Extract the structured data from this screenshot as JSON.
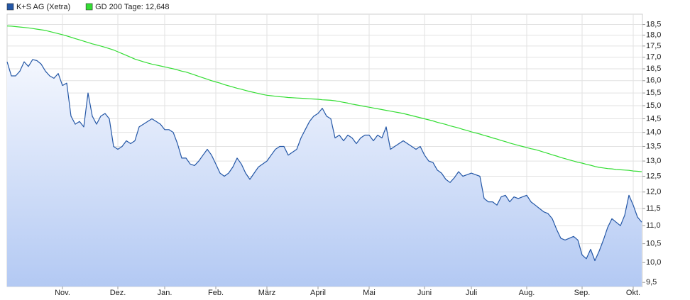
{
  "chart_data": {
    "type": "line",
    "yscale": "log",
    "grid": true,
    "ylim": [
      9.4,
      19.0
    ],
    "yticks": [
      {
        "value": 9.5,
        "label": "9,5"
      },
      {
        "value": 10.0,
        "label": "10,0"
      },
      {
        "value": 10.5,
        "label": "10,5"
      },
      {
        "value": 11.0,
        "label": "11,0"
      },
      {
        "value": 11.5,
        "label": "11,5"
      },
      {
        "value": 12.0,
        "label": "12,0"
      },
      {
        "value": 12.5,
        "label": "12,5"
      },
      {
        "value": 13.0,
        "label": "13,0"
      },
      {
        "value": 13.5,
        "label": "13,5"
      },
      {
        "value": 14.0,
        "label": "14,0"
      },
      {
        "value": 14.5,
        "label": "14,5"
      },
      {
        "value": 15.0,
        "label": "15,0"
      },
      {
        "value": 15.5,
        "label": "15,5"
      },
      {
        "value": 16.0,
        "label": "16,0"
      },
      {
        "value": 16.5,
        "label": "16,5"
      },
      {
        "value": 17.0,
        "label": "17,0"
      },
      {
        "value": 17.5,
        "label": "17,5"
      },
      {
        "value": 18.0,
        "label": "18,0"
      },
      {
        "value": 18.5,
        "label": "18,5"
      }
    ],
    "categories": [
      null,
      null,
      null,
      null,
      null,
      null,
      null,
      null,
      null,
      null,
      null,
      null,
      null,
      "Nov.",
      null,
      null,
      null,
      null,
      null,
      null,
      null,
      null,
      null,
      null,
      null,
      null,
      "Dez.",
      null,
      null,
      null,
      null,
      null,
      null,
      null,
      null,
      null,
      null,
      "Jan.",
      null,
      null,
      null,
      null,
      null,
      null,
      null,
      null,
      null,
      null,
      null,
      "Feb.",
      null,
      null,
      null,
      null,
      null,
      null,
      null,
      null,
      null,
      null,
      null,
      "März",
      null,
      null,
      null,
      null,
      null,
      null,
      null,
      null,
      null,
      null,
      null,
      "April",
      null,
      null,
      null,
      null,
      null,
      null,
      null,
      null,
      null,
      null,
      null,
      "Mai",
      null,
      null,
      null,
      null,
      null,
      null,
      null,
      null,
      null,
      null,
      null,
      null,
      "Juni",
      null,
      null,
      null,
      null,
      null,
      null,
      null,
      null,
      null,
      null,
      "Juli",
      null,
      null,
      null,
      null,
      null,
      null,
      null,
      null,
      null,
      null,
      null,
      null,
      "Aug.",
      null,
      null,
      null,
      null,
      null,
      null,
      null,
      null,
      null,
      null,
      null,
      null,
      "Sep.",
      null,
      null,
      null,
      null,
      null,
      null,
      null,
      null,
      null,
      null,
      null,
      "Okt.",
      null,
      null
    ],
    "series": [
      {
        "name": "K+S AG (Xetra)",
        "color": "#2457a6",
        "fill": true,
        "values": [
          16.8,
          16.2,
          16.2,
          16.4,
          16.8,
          16.6,
          16.9,
          16.85,
          16.7,
          16.4,
          16.2,
          16.1,
          16.3,
          15.8,
          15.9,
          14.6,
          14.3,
          14.4,
          14.2,
          15.5,
          14.6,
          14.3,
          14.6,
          14.7,
          14.5,
          13.5,
          13.4,
          13.5,
          13.7,
          13.6,
          13.7,
          14.2,
          14.3,
          14.4,
          14.5,
          14.4,
          14.3,
          14.1,
          14.1,
          14.0,
          13.6,
          13.1,
          13.1,
          12.9,
          12.85,
          13.0,
          13.2,
          13.4,
          13.2,
          12.9,
          12.6,
          12.5,
          12.6,
          12.8,
          13.1,
          12.9,
          12.6,
          12.4,
          12.6,
          12.8,
          12.9,
          13.0,
          13.2,
          13.4,
          13.5,
          13.5,
          13.2,
          13.3,
          13.4,
          13.8,
          14.1,
          14.4,
          14.6,
          14.7,
          14.9,
          14.6,
          14.5,
          13.8,
          13.9,
          13.7,
          13.9,
          13.8,
          13.6,
          13.8,
          13.9,
          13.9,
          13.7,
          13.9,
          13.8,
          14.2,
          13.4,
          13.5,
          13.6,
          13.7,
          13.6,
          13.5,
          13.4,
          13.5,
          13.2,
          13.0,
          12.95,
          12.7,
          12.6,
          12.4,
          12.3,
          12.45,
          12.65,
          12.5,
          12.55,
          12.6,
          12.55,
          12.5,
          11.8,
          11.7,
          11.7,
          11.6,
          11.85,
          11.9,
          11.7,
          11.85,
          11.8,
          11.85,
          11.9,
          11.7,
          11.6,
          11.5,
          11.4,
          11.35,
          11.2,
          10.9,
          10.65,
          10.6,
          10.65,
          10.7,
          10.6,
          10.2,
          10.1,
          10.35,
          10.05,
          10.3,
          10.6,
          10.95,
          11.2,
          11.1,
          11.0,
          11.3,
          11.9,
          11.6,
          11.25,
          11.1
        ]
      },
      {
        "name": "GD 200 Tage: 12,648",
        "color": "#33dd33",
        "fill": false,
        "values": [
          18.43,
          18.42,
          18.4,
          18.38,
          18.36,
          18.34,
          18.31,
          18.28,
          18.25,
          18.22,
          18.17,
          18.12,
          18.07,
          18.02,
          17.96,
          17.9,
          17.84,
          17.78,
          17.72,
          17.66,
          17.6,
          17.55,
          17.5,
          17.44,
          17.38,
          17.32,
          17.24,
          17.16,
          17.08,
          17.0,
          16.92,
          16.86,
          16.8,
          16.75,
          16.7,
          16.66,
          16.62,
          16.58,
          16.54,
          16.5,
          16.45,
          16.4,
          16.36,
          16.3,
          16.24,
          16.18,
          16.12,
          16.06,
          16.0,
          15.95,
          15.9,
          15.84,
          15.79,
          15.74,
          15.69,
          15.65,
          15.6,
          15.56,
          15.52,
          15.48,
          15.44,
          15.41,
          15.39,
          15.37,
          15.35,
          15.34,
          15.32,
          15.31,
          15.3,
          15.29,
          15.28,
          15.27,
          15.26,
          15.25,
          15.23,
          15.22,
          15.21,
          15.19,
          15.16,
          15.13,
          15.1,
          15.06,
          15.03,
          15.0,
          14.97,
          14.94,
          14.91,
          14.88,
          14.85,
          14.82,
          14.79,
          14.76,
          14.73,
          14.7,
          14.66,
          14.62,
          14.58,
          14.54,
          14.5,
          14.46,
          14.42,
          14.37,
          14.33,
          14.29,
          14.24,
          14.2,
          14.16,
          14.11,
          14.07,
          14.02,
          13.98,
          13.94,
          13.89,
          13.85,
          13.8,
          13.76,
          13.71,
          13.67,
          13.62,
          13.58,
          13.54,
          13.5,
          13.46,
          13.42,
          13.39,
          13.35,
          13.3,
          13.26,
          13.21,
          13.17,
          13.12,
          13.08,
          13.04,
          13.0,
          12.96,
          12.93,
          12.89,
          12.86,
          12.82,
          12.79,
          12.77,
          12.75,
          12.74,
          12.72,
          12.71,
          12.7,
          12.69,
          12.67,
          12.66,
          12.648
        ]
      }
    ]
  }
}
